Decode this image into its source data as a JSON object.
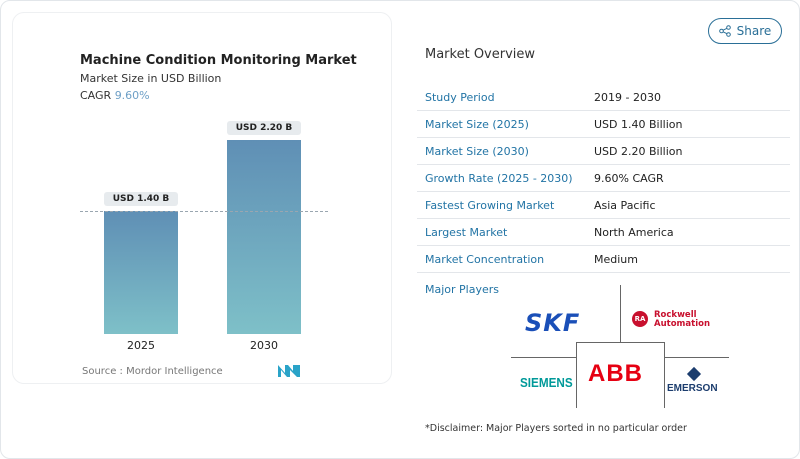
{
  "chart": {
    "title": "Machine Condition Monitoring Market",
    "subtitle": "Market Size in USD Billion",
    "cagr_label": "CAGR",
    "cagr_value": "9.60%",
    "source": "Source :  Mordor Intelligence"
  },
  "chart_data": {
    "type": "bar",
    "categories": [
      "2025",
      "2030"
    ],
    "values": [
      1.4,
      2.2
    ],
    "data_labels": [
      "USD 1.40 B",
      "USD 2.20 B"
    ],
    "title": "Machine Condition Monitoring Market",
    "subtitle": "Market Size in USD Billion",
    "ylim": [
      0,
      2.2
    ],
    "bar_gradient": [
      "#5f8fb5",
      "#7ec0c8"
    ],
    "reference_line": 1.4
  },
  "share": {
    "label": "Share",
    "icon": "share-icon"
  },
  "overview": {
    "title": "Market Overview",
    "rows": [
      {
        "label": "Study Period",
        "value": "2019 - 2030"
      },
      {
        "label": "Market Size (2025)",
        "value": "USD 1.40 Billion"
      },
      {
        "label": "Market Size (2030)",
        "value": "USD 2.20 Billion"
      },
      {
        "label": "Growth Rate (2025 - 2030)",
        "value": "9.60% CAGR"
      },
      {
        "label": "Fastest Growing Market",
        "value": "Asia Pacific"
      },
      {
        "label": "Largest Market",
        "value": "North America"
      },
      {
        "label": "Market Concentration",
        "value": "Medium"
      }
    ]
  },
  "players": {
    "title": "Major Players",
    "logos": [
      "SKF",
      "Rockwell Automation",
      "SIEMENS",
      "ABB",
      "EMERSON"
    ],
    "disclaimer": "*Disclaimer: Major Players sorted in no particular order"
  },
  "colors": {
    "accent": "#2274a5",
    "skf": "#1a4fb8",
    "rockwell": "#c8102e",
    "siemens": "#009999",
    "abb": "#e60012",
    "emerson": "#1c3d6e"
  }
}
